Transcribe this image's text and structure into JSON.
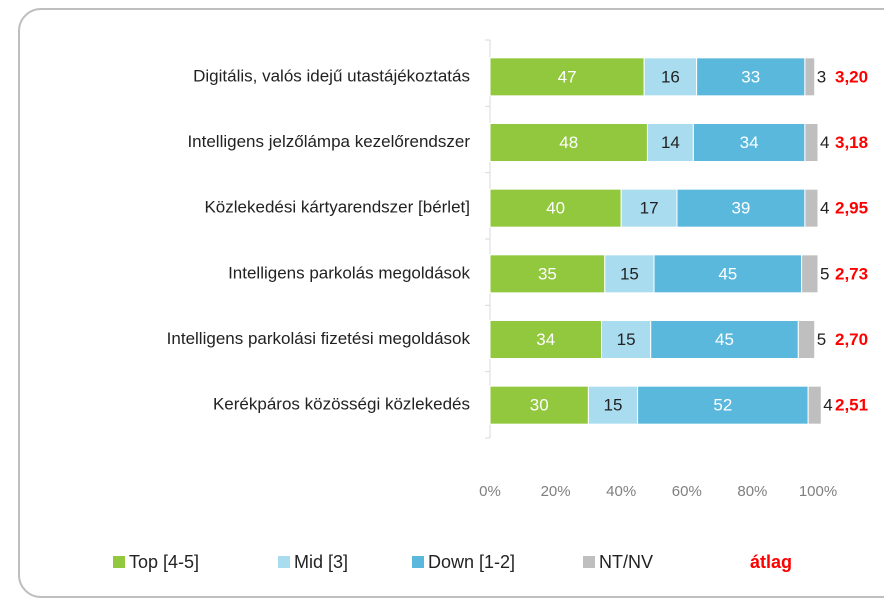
{
  "chart_data": {
    "type": "stacked_barh",
    "categories": [
      "Digitális, valós idejű utastájékoztatás",
      "Intelligens jelzőlámpa kezelőrendszer",
      "Közlekedési kártyarendszer [bérlet]",
      "Intelligens parkolás megoldások",
      "Intelligens parkolási fizetési megoldások",
      "Kerékpáros közösségi közlekedés"
    ],
    "series": [
      {
        "name": "Top [4-5]",
        "color": "#92c83e",
        "label_color": "#ffffff",
        "values": [
          47,
          48,
          40,
          35,
          34,
          30
        ]
      },
      {
        "name": "Mid [3]",
        "color": "#a9dcef",
        "label_color": "#222222",
        "values": [
          16,
          14,
          17,
          15,
          15,
          15
        ]
      },
      {
        "name": "Down [1-2]",
        "color": "#5ab8dd",
        "label_color": "#ffffff",
        "values": [
          33,
          34,
          39,
          45,
          45,
          52
        ]
      },
      {
        "name": "NT/NV",
        "color": "#bfbfbf",
        "label_color": "#222222",
        "values": [
          3,
          4,
          4,
          5,
          5,
          4
        ]
      }
    ],
    "average": {
      "name": "átlag",
      "color": "#ff0000",
      "values": [
        3.2,
        3.18,
        2.95,
        2.73,
        2.7,
        2.51
      ],
      "value_labels": [
        "3,20",
        "3,18",
        "2,95",
        "2,73",
        "2,70",
        "2,51"
      ]
    },
    "xlim": [
      0,
      100
    ],
    "xticks": [
      {
        "value": 0,
        "label": "0%"
      },
      {
        "value": 20,
        "label": "20%"
      },
      {
        "value": 40,
        "label": "40%"
      },
      {
        "value": 60,
        "label": "60%"
      },
      {
        "value": 80,
        "label": "80%"
      },
      {
        "value": 100,
        "label": "100%"
      }
    ]
  }
}
